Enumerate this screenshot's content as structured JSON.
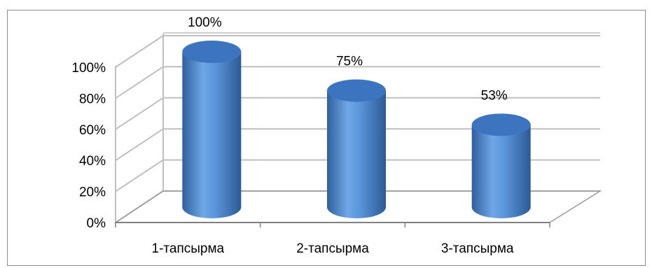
{
  "chart_data": {
    "type": "bar",
    "style": "3d-cylinder",
    "categories": [
      "1-тапсырма",
      "2-тапсырма",
      "3-тапсырма"
    ],
    "values": [
      100,
      75,
      53
    ],
    "data_labels": [
      "100%",
      "75%",
      "53%"
    ],
    "y_ticks": [
      "0%",
      "20%",
      "40%",
      "60%",
      "80%",
      "100%"
    ],
    "ylim": [
      0,
      100
    ],
    "grid": true,
    "legend": "none",
    "colors": {
      "bar": "#4f8ad6",
      "bar_top": "#3c74bf",
      "grid": "#bfbfbf"
    }
  }
}
